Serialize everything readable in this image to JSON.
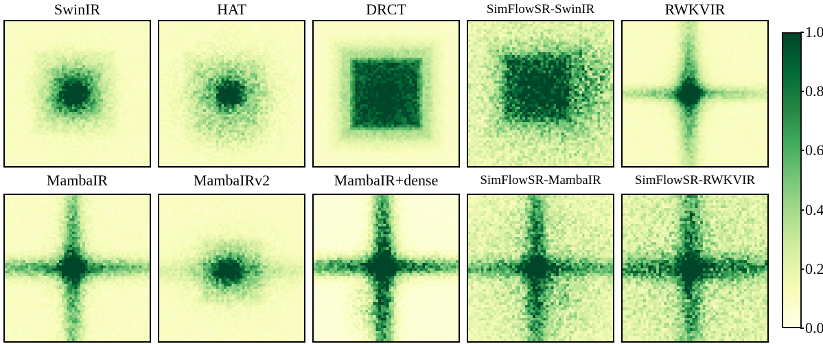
{
  "chart_data": {
    "type": "heatmap",
    "title": "",
    "description": "Grid of ten attribution/receptive-field heatmaps for super-resolution models, shared YlGn colorbar on the right",
    "grid_size": 56,
    "colormap": {
      "name": "YlGn",
      "stops": [
        {
          "t": 0.0,
          "c": "#ffffe5"
        },
        {
          "t": 0.125,
          "c": "#f7fcb9"
        },
        {
          "t": 0.25,
          "c": "#d9f0a3"
        },
        {
          "t": 0.375,
          "c": "#addd8e"
        },
        {
          "t": 0.5,
          "c": "#78c679"
        },
        {
          "t": 0.625,
          "c": "#41ab5d"
        },
        {
          "t": 0.75,
          "c": "#238443"
        },
        {
          "t": 0.875,
          "c": "#006837"
        },
        {
          "t": 1.0,
          "c": "#004529"
        }
      ]
    },
    "colorbar": {
      "min": 0.0,
      "max": 1.0,
      "position": "right",
      "ticks": [
        "1.0",
        "0.8",
        "0.6",
        "0.4",
        "0.2",
        "0.0"
      ]
    },
    "panels": [
      {
        "label": "SwinIR",
        "row": 0,
        "col": 0,
        "pattern": {
          "seed": 11,
          "baseline": 0.1,
          "noise": 0.22,
          "components": [
            {
              "type": "square",
              "cx": 0.48,
              "cy": 0.49,
              "size": 0.21,
              "soft": 0.1,
              "amp": 0.2
            },
            {
              "type": "square",
              "cx": 0.48,
              "cy": 0.49,
              "size": 0.31,
              "soft": 0.07,
              "amp": 0.08
            },
            {
              "type": "blob",
              "cx": 0.48,
              "cy": 0.5,
              "sx": 0.05,
              "sy": 0.05,
              "amp": 0.95
            },
            {
              "type": "blob",
              "cx": 0.48,
              "cy": 0.5,
              "sx": 0.11,
              "sy": 0.11,
              "amp": 0.28
            },
            {
              "type": "nblob",
              "cx": 0.48,
              "cy": 0.5,
              "sx": 0.17,
              "sy": 0.17,
              "amp": 0.3
            }
          ]
        }
      },
      {
        "label": "HAT",
        "row": 0,
        "col": 1,
        "pattern": {
          "seed": 22,
          "baseline": 0.1,
          "noise": 0.25,
          "components": [
            {
              "type": "square",
              "cx": 0.47,
              "cy": 0.51,
              "size": 0.31,
              "soft": 0.12,
              "amp": 0.13
            },
            {
              "type": "blob",
              "cx": 0.49,
              "cy": 0.5,
              "sx": 0.05,
              "sy": 0.05,
              "amp": 0.95
            },
            {
              "type": "blob",
              "cx": 0.49,
              "cy": 0.5,
              "sx": 0.11,
              "sy": 0.09,
              "amp": 0.32
            },
            {
              "type": "nblob",
              "cx": 0.48,
              "cy": 0.51,
              "sx": 0.21,
              "sy": 0.19,
              "amp": 0.38
            },
            {
              "type": "nblob",
              "cx": 0.48,
              "cy": 0.8,
              "sx": 0.15,
              "sy": 0.06,
              "amp": 0.2
            }
          ]
        }
      },
      {
        "label": "DRCT",
        "row": 0,
        "col": 2,
        "pattern": {
          "seed": 33,
          "baseline": 0.08,
          "noise": 0.15,
          "components": [
            {
              "type": "square",
              "cx": 0.5,
              "cy": 0.5,
              "size": 0.26,
              "soft": 0.05,
              "amp": 0.52
            },
            {
              "type": "square",
              "cx": 0.5,
              "cy": 0.5,
              "size": 0.34,
              "soft": 0.05,
              "amp": 0.16
            },
            {
              "type": "square",
              "cx": 0.5,
              "cy": 0.5,
              "size": 0.42,
              "soft": 0.07,
              "amp": 0.08
            },
            {
              "type": "blob",
              "cx": 0.5,
              "cy": 0.52,
              "sx": 0.11,
              "sy": 0.11,
              "amp": 0.22
            },
            {
              "type": "nblob",
              "cx": 0.5,
              "cy": 0.5,
              "sx": 0.24,
              "sy": 0.24,
              "amp": 0.14
            }
          ]
        }
      },
      {
        "label": "SimFlowSR-SwinIR",
        "row": 0,
        "col": 3,
        "pattern": {
          "seed": 44,
          "baseline": 0.12,
          "noise": 0.3,
          "components": [
            {
              "type": "square",
              "cx": 0.47,
              "cy": 0.46,
              "size": 0.25,
              "soft": 0.06,
              "amp": 0.4
            },
            {
              "type": "square",
              "cx": 0.47,
              "cy": 0.46,
              "size": 0.36,
              "soft": 0.1,
              "amp": 0.17
            },
            {
              "type": "blob",
              "cx": 0.49,
              "cy": 0.46,
              "sx": 0.1,
              "sy": 0.1,
              "amp": 0.3
            },
            {
              "type": "nblob",
              "cx": 0.5,
              "cy": 0.5,
              "sx": 0.5,
              "sy": 0.5,
              "amp": 0.28
            },
            {
              "type": "nblob",
              "cx": 0.84,
              "cy": 0.42,
              "sx": 0.12,
              "sy": 0.16,
              "amp": 0.55
            },
            {
              "type": "nblob",
              "cx": 0.7,
              "cy": 0.55,
              "sx": 0.25,
              "sy": 0.28,
              "amp": 0.22
            }
          ]
        }
      },
      {
        "label": "RWKVIR",
        "row": 0,
        "col": 4,
        "pattern": {
          "seed": 55,
          "baseline": 0.1,
          "noise": 0.2,
          "components": [
            {
              "type": "vband",
              "cx": 0.46,
              "cy": 0.5,
              "w": 0.045,
              "len": 0.42,
              "amp": 0.38
            },
            {
              "type": "hband",
              "cx": 0.46,
              "cy": 0.5,
              "w": 0.032,
              "len": 0.45,
              "amp": 0.3
            },
            {
              "type": "blob",
              "cx": 0.46,
              "cy": 0.5,
              "sx": 0.045,
              "sy": 0.05,
              "amp": 0.75
            },
            {
              "type": "blob",
              "cx": 0.46,
              "cy": 0.5,
              "sx": 0.09,
              "sy": 0.11,
              "amp": 0.28
            },
            {
              "type": "nblob",
              "cx": 0.46,
              "cy": 0.5,
              "sx": 0.05,
              "sy": 0.3,
              "amp": 0.18
            },
            {
              "type": "nblob",
              "cx": 0.46,
              "cy": 0.5,
              "sx": 0.3,
              "sy": 0.04,
              "amp": 0.15
            }
          ]
        }
      },
      {
        "label": "MambaIR",
        "row": 1,
        "col": 0,
        "pattern": {
          "seed": 66,
          "baseline": 0.1,
          "noise": 0.25,
          "components": [
            {
              "type": "vband",
              "cx": 0.47,
              "cy": 0.5,
              "w": 0.04,
              "len": 0.55,
              "amp": 0.42
            },
            {
              "type": "hband",
              "cx": 0.47,
              "cy": 0.5,
              "w": 0.038,
              "len": 0.55,
              "amp": 0.42
            },
            {
              "type": "blob",
              "cx": 0.47,
              "cy": 0.5,
              "sx": 0.05,
              "sy": 0.05,
              "amp": 0.8
            },
            {
              "type": "blob",
              "cx": 0.47,
              "cy": 0.5,
              "sx": 0.1,
              "sy": 0.1,
              "amp": 0.22
            },
            {
              "type": "nblob",
              "cx": 0.47,
              "cy": 0.5,
              "sx": 0.07,
              "sy": 0.42,
              "amp": 0.28
            },
            {
              "type": "nblob",
              "cx": 0.47,
              "cy": 0.5,
              "sx": 0.42,
              "sy": 0.06,
              "amp": 0.28
            }
          ]
        }
      },
      {
        "label": "MambaIRv2",
        "row": 1,
        "col": 1,
        "pattern": {
          "seed": 77,
          "baseline": 0.1,
          "noise": 0.22,
          "components": [
            {
              "type": "hband",
              "cx": 0.5,
              "cy": 0.52,
              "w": 0.05,
              "len": 0.6,
              "amp": 0.16
            },
            {
              "type": "square",
              "cx": 0.5,
              "cy": 0.52,
              "size": 0.24,
              "soft": 0.05,
              "amp": 0.1
            },
            {
              "type": "blob",
              "cx": 0.47,
              "cy": 0.52,
              "sx": 0.055,
              "sy": 0.05,
              "amp": 0.8
            },
            {
              "type": "blob",
              "cx": 0.49,
              "cy": 0.52,
              "sx": 0.12,
              "sy": 0.085,
              "amp": 0.28
            },
            {
              "type": "nblob",
              "cx": 0.5,
              "cy": 0.52,
              "sx": 0.19,
              "sy": 0.15,
              "amp": 0.32
            }
          ]
        }
      },
      {
        "label": "MambaIR+dense",
        "row": 1,
        "col": 2,
        "pattern": {
          "seed": 88,
          "baseline": 0.04,
          "noise": 0.3,
          "components": [
            {
              "type": "vband",
              "cx": 0.48,
              "cy": 0.5,
              "w": 0.045,
              "len": 0.6,
              "amp": 0.72
            },
            {
              "type": "hband",
              "cx": 0.48,
              "cy": 0.49,
              "w": 0.038,
              "len": 0.6,
              "amp": 0.62
            },
            {
              "type": "blob",
              "cx": 0.48,
              "cy": 0.49,
              "sx": 0.08,
              "sy": 0.08,
              "amp": 0.4
            },
            {
              "type": "nblob",
              "cx": 0.48,
              "cy": 0.5,
              "sx": 0.08,
              "sy": 0.45,
              "amp": 0.3
            },
            {
              "type": "nblob",
              "cx": 0.5,
              "cy": 0.49,
              "sx": 0.45,
              "sy": 0.07,
              "amp": 0.3
            },
            {
              "type": "nblob",
              "cx": 0.36,
              "cy": 0.78,
              "sx": 0.08,
              "sy": 0.12,
              "amp": 0.3
            }
          ]
        }
      },
      {
        "label": "SimFlowSR-MambaIR",
        "row": 1,
        "col": 3,
        "pattern": {
          "seed": 99,
          "baseline": 0.12,
          "noise": 0.28,
          "components": [
            {
              "type": "vband",
              "cx": 0.47,
              "cy": 0.5,
              "w": 0.04,
              "len": 0.55,
              "amp": 0.5
            },
            {
              "type": "hband",
              "cx": 0.47,
              "cy": 0.5,
              "w": 0.042,
              "len": 0.55,
              "amp": 0.48
            },
            {
              "type": "blob",
              "cx": 0.47,
              "cy": 0.5,
              "sx": 0.055,
              "sy": 0.055,
              "amp": 0.6
            },
            {
              "type": "nblob",
              "cx": 0.5,
              "cy": 0.5,
              "sx": 0.45,
              "sy": 0.45,
              "amp": 0.3
            },
            {
              "type": "nblob",
              "cx": 0.47,
              "cy": 0.5,
              "sx": 0.09,
              "sy": 0.4,
              "amp": 0.25
            },
            {
              "type": "nblob",
              "cx": 0.62,
              "cy": 0.68,
              "sx": 0.14,
              "sy": 0.18,
              "amp": 0.22
            }
          ]
        }
      },
      {
        "label": "SimFlowSR-RWKVIR",
        "row": 1,
        "col": 4,
        "pattern": {
          "seed": 110,
          "baseline": 0.14,
          "noise": 0.32,
          "components": [
            {
              "type": "hband",
              "cx": 0.48,
              "cy": 0.5,
              "w": 0.05,
              "len": 0.6,
              "amp": 0.42
            },
            {
              "type": "vband",
              "cx": 0.47,
              "cy": 0.5,
              "w": 0.05,
              "len": 0.6,
              "amp": 0.38
            },
            {
              "type": "blob",
              "cx": 0.47,
              "cy": 0.5,
              "sx": 0.055,
              "sy": 0.055,
              "amp": 0.5
            },
            {
              "type": "nblob",
              "cx": 0.5,
              "cy": 0.5,
              "sx": 0.5,
              "sy": 0.5,
              "amp": 0.3
            },
            {
              "type": "nblob",
              "cx": 0.5,
              "cy": 0.5,
              "sx": 0.5,
              "sy": 0.06,
              "amp": 0.38
            },
            {
              "type": "nblob",
              "cx": 0.47,
              "cy": 0.5,
              "sx": 0.06,
              "sy": 0.5,
              "amp": 0.32
            }
          ]
        }
      }
    ]
  }
}
